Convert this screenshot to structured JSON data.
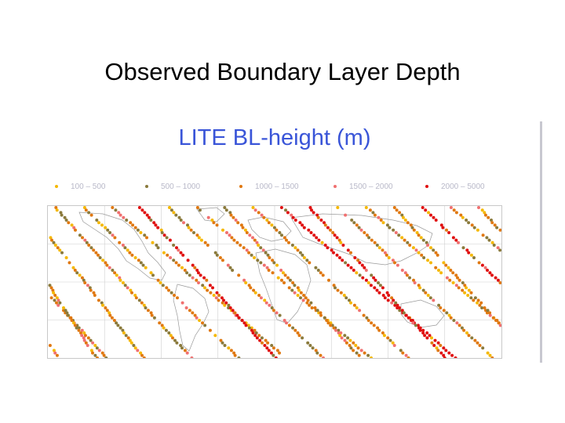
{
  "slide": {
    "title": "Observed Boundary Layer Depth"
  },
  "figure": {
    "title": "LITE BL-height (m)"
  },
  "legend": [
    {
      "label": "100 – 500",
      "color": "#f5b800"
    },
    {
      "label": "500 – 1000",
      "color": "#8a7a3c"
    },
    {
      "label": "1000 – 1500",
      "color": "#e07810"
    },
    {
      "label": "1500 – 2000",
      "color": "#f07070"
    },
    {
      "label": "2000 – 5000",
      "color": "#e01010"
    }
  ],
  "map": {
    "background": "#ffffff",
    "grid_color": "#cfcfcf",
    "coast_color": "#9a9a9a",
    "projection": "cylindrical global map"
  }
}
